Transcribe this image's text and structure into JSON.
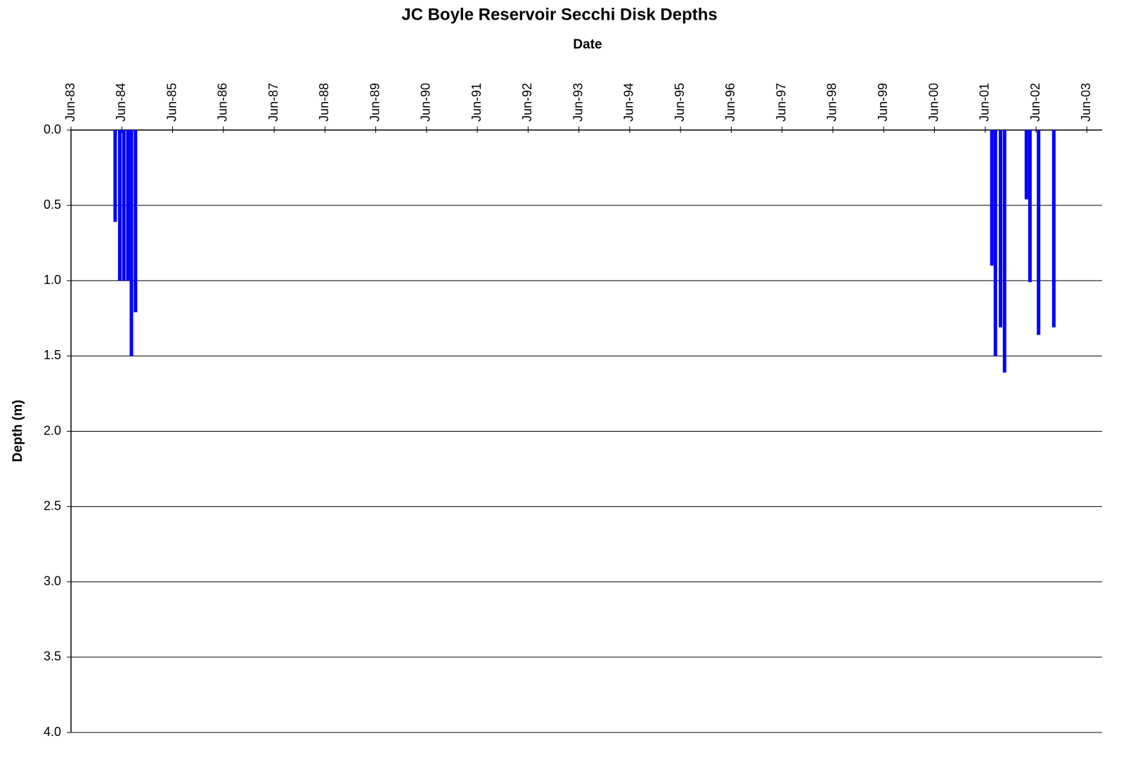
{
  "chart_data": {
    "type": "bar",
    "title": "JC Boyle Reservoir Secchi Disk Depths",
    "x_label": "Date",
    "y_label": "Depth (m)",
    "x": [
      1984.29,
      1984.38,
      1984.46,
      1984.54,
      1984.61,
      1984.69,
      2001.55,
      2001.62,
      2001.72,
      2001.8,
      2002.23,
      2002.3,
      2002.47,
      2002.77
    ],
    "values": [
      0.61,
      1.0,
      1.0,
      1.0,
      1.5,
      1.21,
      0.9,
      1.5,
      1.31,
      1.61,
      0.46,
      1.01,
      1.36,
      1.31
    ],
    "color": "#0000ff",
    "xlim": [
      1983.42,
      2003.72
    ],
    "xticks": [
      {
        "value": 1983.42,
        "label": "Jun-83"
      },
      {
        "value": 1984.42,
        "label": "Jun-84"
      },
      {
        "value": 1985.42,
        "label": "Jun-85"
      },
      {
        "value": 1986.42,
        "label": "Jun-86"
      },
      {
        "value": 1987.42,
        "label": "Jun-87"
      },
      {
        "value": 1988.42,
        "label": "Jun-88"
      },
      {
        "value": 1989.42,
        "label": "Jun-89"
      },
      {
        "value": 1990.42,
        "label": "Jun-90"
      },
      {
        "value": 1991.42,
        "label": "Jun-91"
      },
      {
        "value": 1992.42,
        "label": "Jun-92"
      },
      {
        "value": 1993.42,
        "label": "Jun-93"
      },
      {
        "value": 1994.42,
        "label": "Jun-94"
      },
      {
        "value": 1995.42,
        "label": "Jun-95"
      },
      {
        "value": 1996.42,
        "label": "Jun-96"
      },
      {
        "value": 1997.42,
        "label": "Jun-97"
      },
      {
        "value": 1998.42,
        "label": "Jun-98"
      },
      {
        "value": 1999.42,
        "label": "Jun-99"
      },
      {
        "value": 2000.42,
        "label": "Jun-00"
      },
      {
        "value": 2001.42,
        "label": "Jun-01"
      },
      {
        "value": 2002.42,
        "label": "Jun-02"
      },
      {
        "value": 2003.42,
        "label": "Jun-03"
      }
    ],
    "ylim": [
      0,
      4
    ],
    "y_inverted": true,
    "yticks": [
      {
        "value": 0,
        "label": "0.0"
      },
      {
        "value": 0.5,
        "label": "0.5"
      },
      {
        "value": 1,
        "label": "1.0"
      },
      {
        "value": 1.5,
        "label": "1.5"
      },
      {
        "value": 2,
        "label": "2.0"
      },
      {
        "value": 2.5,
        "label": "2.5"
      },
      {
        "value": 3,
        "label": "3.0"
      },
      {
        "value": 3.5,
        "label": "3.5"
      },
      {
        "value": 4,
        "label": "4.0"
      }
    ],
    "grid": true
  }
}
